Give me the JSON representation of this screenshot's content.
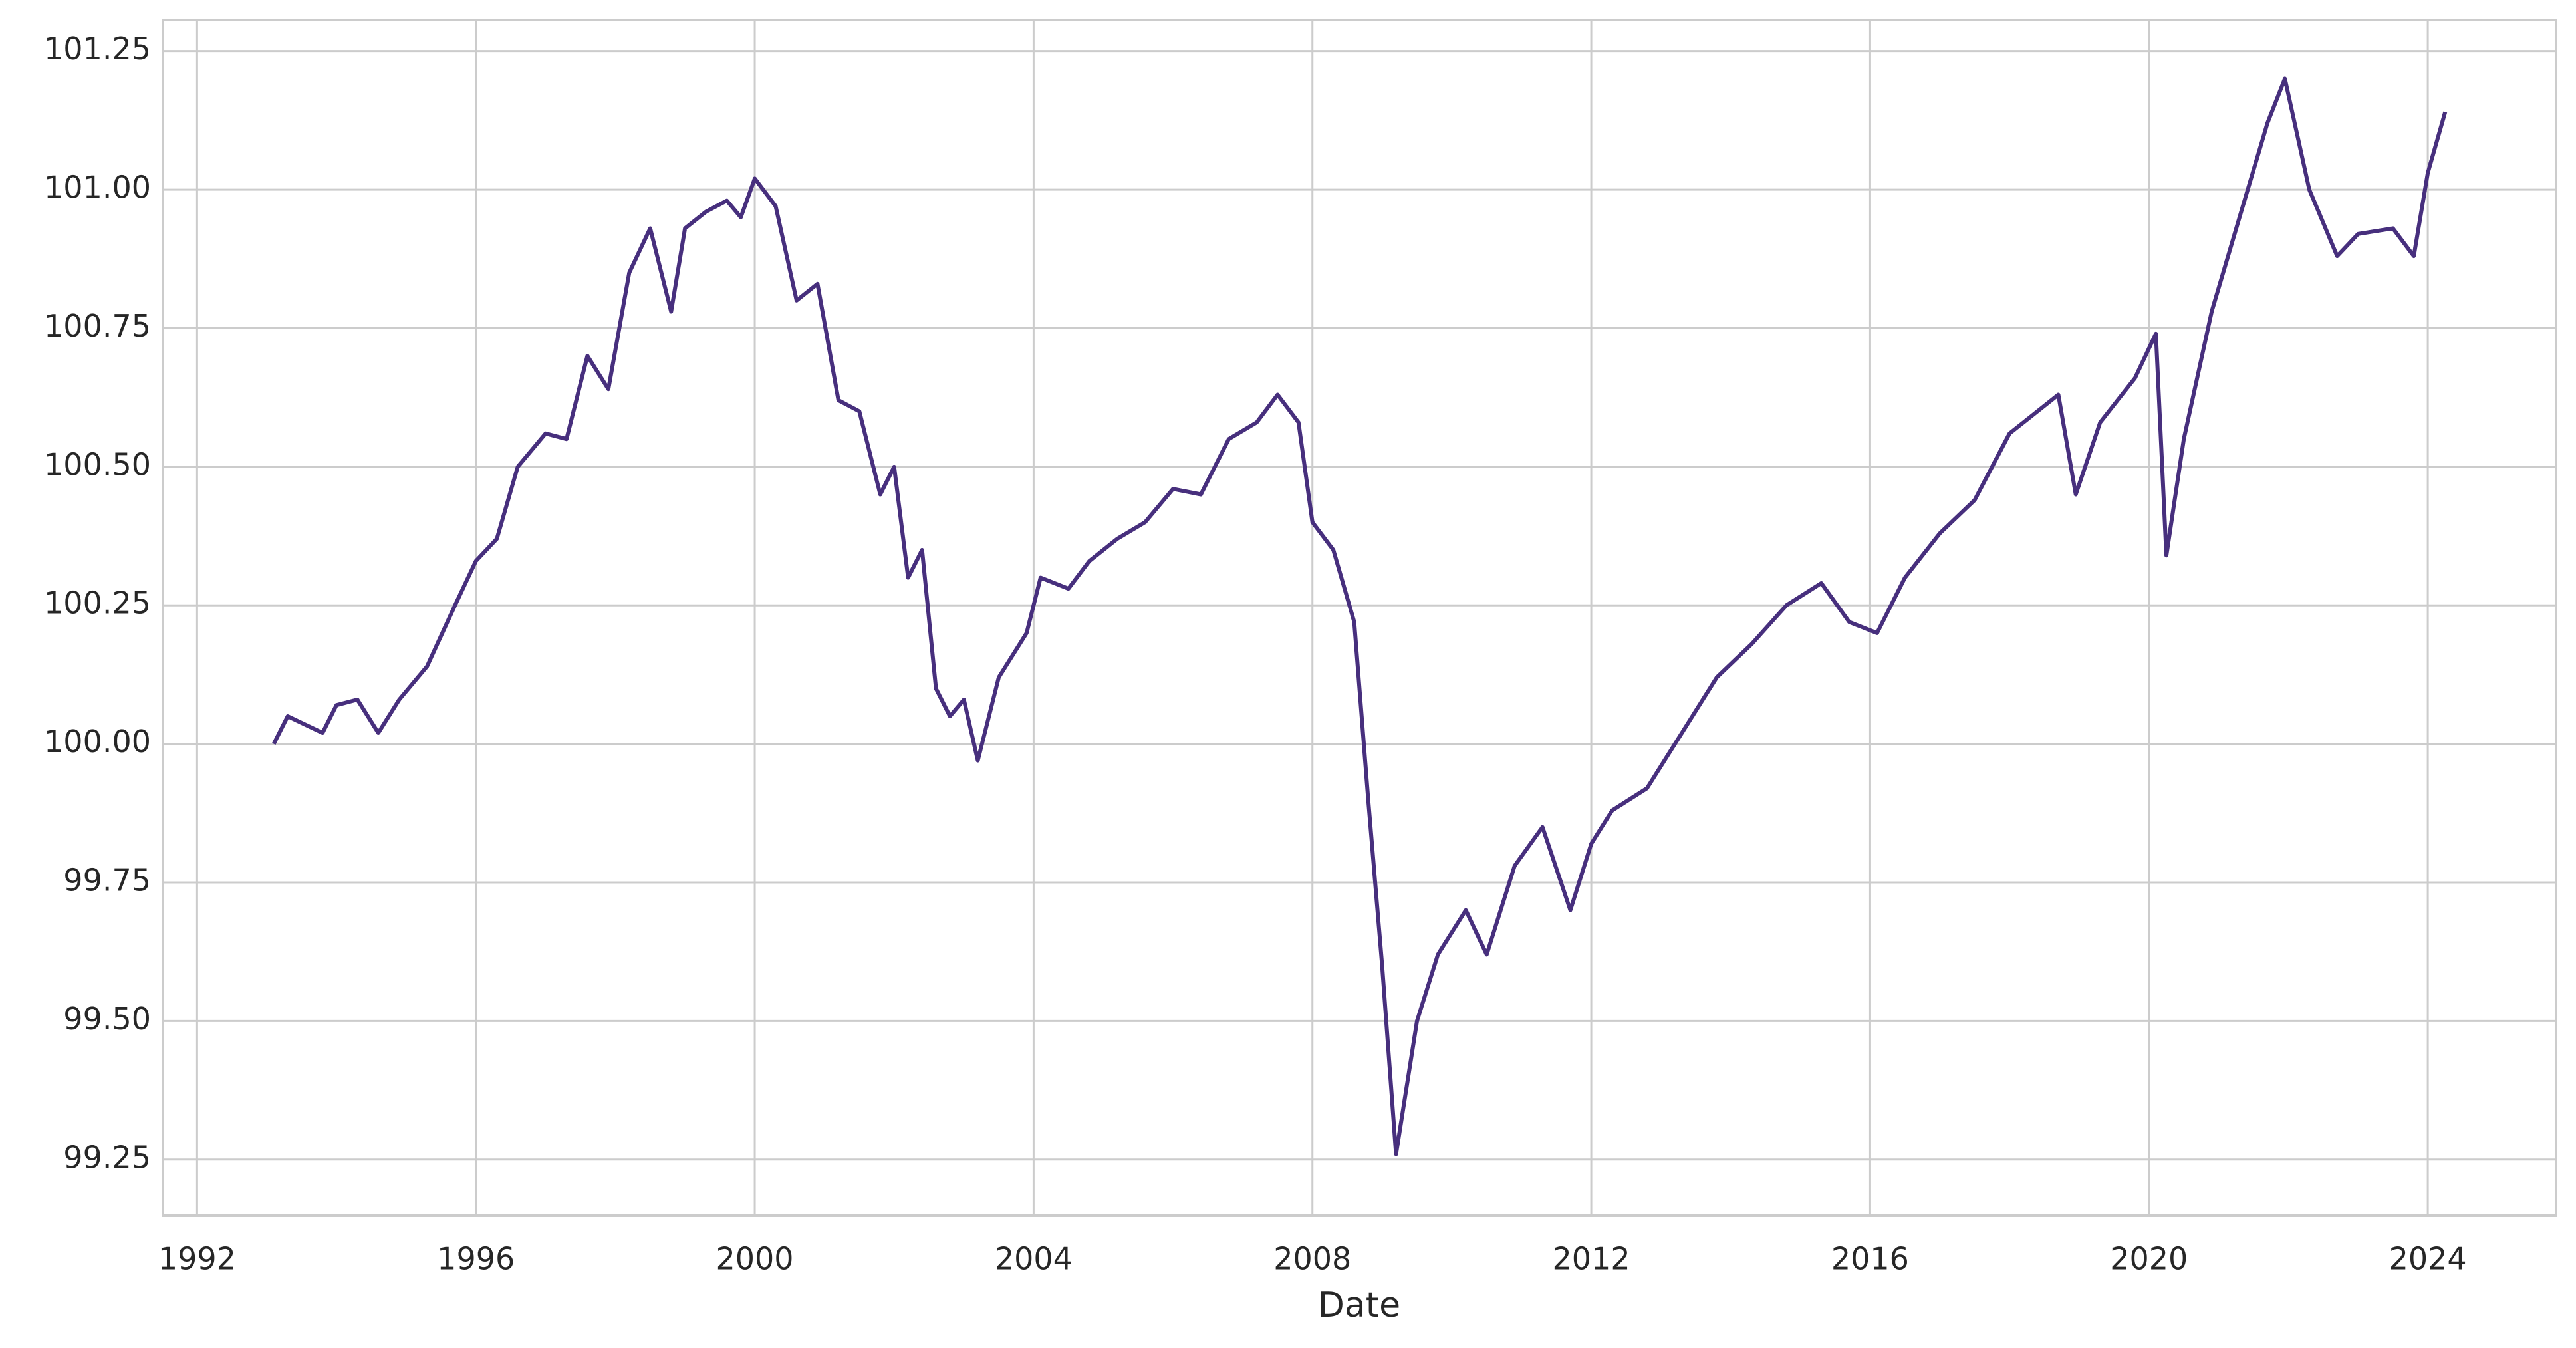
{
  "chart_data": {
    "type": "line",
    "x_label": "Date",
    "color": "#472f7d",
    "grid": true,
    "x": [
      1993.1,
      1993.3,
      1993.8,
      1994.0,
      1994.3,
      1994.6,
      1994.9,
      1995.3,
      1995.7,
      1996.0,
      1996.3,
      1996.6,
      1997.0,
      1997.3,
      1997.6,
      1997.9,
      1998.2,
      1998.5,
      1998.8,
      1999.0,
      1999.3,
      1999.6,
      1999.8,
      2000.0,
      2000.3,
      2000.6,
      2000.9,
      2001.2,
      2001.5,
      2001.8,
      2002.0,
      2002.2,
      2002.4,
      2002.6,
      2002.8,
      2003.0,
      2003.2,
      2003.5,
      2003.9,
      2004.1,
      2004.5,
      2004.8,
      2005.2,
      2005.6,
      2006.0,
      2006.4,
      2006.8,
      2007.2,
      2007.5,
      2007.8,
      2008.0,
      2008.3,
      2008.6,
      2008.8,
      2009.0,
      2009.2,
      2009.5,
      2009.8,
      2010.2,
      2010.5,
      2010.9,
      2011.3,
      2011.7,
      2012.0,
      2012.3,
      2012.8,
      2013.3,
      2013.8,
      2014.3,
      2014.8,
      2015.3,
      2015.7,
      2016.1,
      2016.5,
      2017.0,
      2017.5,
      2018.0,
      2018.2,
      2018.7,
      2018.95,
      2019.3,
      2019.8,
      2020.1,
      2020.25,
      2020.5,
      2020.9,
      2021.3,
      2021.7,
      2021.95,
      2022.3,
      2022.7,
      2023.0,
      2023.5,
      2023.8,
      2024.0,
      2024.25
    ],
    "values": [
      100.0,
      100.05,
      100.02,
      100.07,
      100.08,
      100.02,
      100.08,
      100.14,
      100.25,
      100.33,
      100.37,
      100.5,
      100.56,
      100.55,
      100.7,
      100.64,
      100.85,
      100.93,
      100.78,
      100.93,
      100.96,
      100.98,
      100.95,
      101.02,
      100.97,
      100.8,
      100.83,
      100.62,
      100.6,
      100.45,
      100.5,
      100.3,
      100.35,
      100.1,
      100.05,
      100.08,
      99.97,
      100.12,
      100.2,
      100.3,
      100.28,
      100.33,
      100.37,
      100.4,
      100.46,
      100.45,
      100.55,
      100.58,
      100.63,
      100.58,
      100.4,
      100.35,
      100.22,
      99.9,
      99.6,
      99.26,
      99.5,
      99.62,
      99.7,
      99.62,
      99.78,
      99.85,
      99.7,
      99.82,
      99.88,
      99.92,
      100.02,
      100.12,
      100.18,
      100.25,
      100.29,
      100.22,
      100.2,
      100.3,
      100.38,
      100.44,
      100.56,
      100.58,
      100.63,
      100.45,
      100.58,
      100.66,
      100.74,
      100.34,
      100.55,
      100.78,
      100.95,
      101.12,
      101.2,
      101.0,
      100.88,
      100.92,
      100.93,
      100.88,
      101.03,
      101.14
    ],
    "xlim": [
      1991.51,
      2025.84
    ],
    "xticks": [
      1992,
      1996,
      2000,
      2004,
      2008,
      2012,
      2016,
      2020,
      2024
    ],
    "ylim": [
      99.149,
      101.306
    ],
    "yticks": [
      99.25,
      {
        "value": 99.5,
        "label": "99.50"
      },
      99.75,
      {
        "value": 100,
        "label": "100.00"
      },
      100.25,
      {
        "value": 100.5,
        "label": "100.50"
      },
      100.75,
      {
        "value": 101,
        "label": "101.00"
      },
      101.25
    ]
  }
}
